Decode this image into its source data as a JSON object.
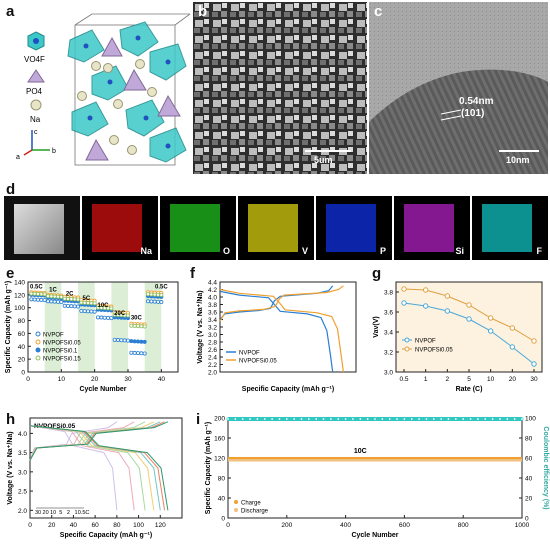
{
  "panels": {
    "a": "a",
    "b": "b",
    "c": "c",
    "d": "d",
    "e": "e",
    "f": "f",
    "g": "g",
    "h": "h",
    "i": "i"
  },
  "panel_a": {
    "legend": [
      "VO4F",
      "PO4",
      "Na"
    ],
    "axes": {
      "a": "a",
      "b": "b",
      "c": "c"
    }
  },
  "panel_b": {
    "scale": "5um"
  },
  "panel_c": {
    "spacing": "0.54nm",
    "plane": "(101)",
    "scale": "10nm"
  },
  "panel_d": {
    "maps": [
      "Na",
      "O",
      "V",
      "P",
      "Si",
      "F"
    ],
    "map_colors": [
      "#d01010",
      "#20c020",
      "#d8d010",
      "#1030e0",
      "#b020c0",
      "#10c0c0"
    ]
  },
  "chart_data": [
    {
      "id": "e",
      "type": "scatter",
      "xlabel": "Cycle Number",
      "ylabel": "Specific Capacity (mAh g⁻¹)",
      "xlim": [
        0,
        45
      ],
      "ylim": [
        0,
        140
      ],
      "xticks": [
        0,
        10,
        20,
        30,
        40
      ],
      "yticks": [
        0,
        20,
        40,
        60,
        80,
        100,
        120,
        140
      ],
      "rate_labels": [
        {
          "text": "0.5C",
          "x": 2.5,
          "y": 130
        },
        {
          "text": "1C",
          "x": 7.5,
          "y": 125
        },
        {
          "text": "2C",
          "x": 12.5,
          "y": 119
        },
        {
          "text": "5C",
          "x": 17.5,
          "y": 112
        },
        {
          "text": "10C",
          "x": 22.5,
          "y": 101
        },
        {
          "text": "20C",
          "x": 27.5,
          "y": 89
        },
        {
          "text": "30C",
          "x": 32.5,
          "y": 82
        },
        {
          "text": "0.5C",
          "x": 40,
          "y": 130
        }
      ],
      "series": [
        {
          "name": "NVPOF",
          "color": "#2a7fd4",
          "filled": false,
          "levels": [
            113,
            110,
            103,
            95,
            85,
            50,
            30,
            110
          ]
        },
        {
          "name": "NVPOFSi0.05",
          "color": "#f0a030",
          "filled": false,
          "levels": [
            124,
            120,
            117,
            112,
            103,
            93,
            75,
            124
          ]
        },
        {
          "name": "NVPOFSi0.1",
          "color": "#2a7fd4",
          "filled": true,
          "levels": [
            120,
            116,
            111,
            105,
            97,
            85,
            48,
            118
          ]
        },
        {
          "name": "NVPOFSi0.15",
          "color": "#90c060",
          "filled": false,
          "levels": [
            122,
            118,
            114,
            108,
            100,
            89,
            72,
            121
          ]
        }
      ],
      "legend": [
        "NVPOF",
        "NVPOFSi0.05",
        "NVPOFSi0.1",
        "NVPOFSi0.15"
      ]
    },
    {
      "id": "f",
      "type": "line",
      "xlabel": "Specific Capacity (mAh g⁻¹)",
      "ylabel": "Voltage (V vs. Na⁺/Na)",
      "xlim": [
        0,
        140
      ],
      "ylim": [
        2.0,
        4.4
      ],
      "yticks": [
        2.0,
        2.2,
        2.4,
        2.6,
        2.8,
        3.0,
        3.2,
        3.4,
        3.6,
        3.8,
        4.0,
        4.2,
        4.4
      ],
      "series": [
        {
          "name": "NVPOF",
          "color": "#2a7fd4",
          "charge": [
            [
              0,
              3.4
            ],
            [
              5,
              3.55
            ],
            [
              20,
              3.6
            ],
            [
              40,
              3.64
            ],
            [
              52,
              3.7
            ],
            [
              56,
              3.9
            ],
            [
              62,
              4.02
            ],
            [
              100,
              4.1
            ],
            [
              112,
              4.17
            ],
            [
              116,
              4.3
            ]
          ],
          "discharge": [
            [
              0,
              4.15
            ],
            [
              20,
              4.05
            ],
            [
              50,
              3.98
            ],
            [
              56,
              3.8
            ],
            [
              62,
              3.62
            ],
            [
              90,
              3.55
            ],
            [
              104,
              3.45
            ],
            [
              110,
              3.1
            ],
            [
              114,
              2.4
            ],
            [
              116,
              2.0
            ]
          ]
        },
        {
          "name": "NVPOFSi0.05",
          "color": "#f0a030",
          "charge": [
            [
              0,
              3.35
            ],
            [
              5,
              3.58
            ],
            [
              20,
              3.63
            ],
            [
              45,
              3.67
            ],
            [
              57,
              3.75
            ],
            [
              61,
              3.95
            ],
            [
              66,
              4.05
            ],
            [
              110,
              4.12
            ],
            [
              122,
              4.2
            ],
            [
              127,
              4.3
            ]
          ],
          "discharge": [
            [
              0,
              4.2
            ],
            [
              20,
              4.1
            ],
            [
              55,
              4.02
            ],
            [
              61,
              3.85
            ],
            [
              67,
              3.66
            ],
            [
              100,
              3.58
            ],
            [
              115,
              3.48
            ],
            [
              121,
              3.15
            ],
            [
              125,
              2.4
            ],
            [
              127,
              2.0
            ]
          ]
        }
      ],
      "legend": [
        "NVPOF",
        "NVPOFSi0.05"
      ]
    },
    {
      "id": "g",
      "type": "line",
      "xlabel": "Rate (C)",
      "ylabel": "Vav(V)",
      "ylim": [
        3.0,
        3.9
      ],
      "yticks": [
        3.0,
        3.2,
        3.4,
        3.6,
        3.8
      ],
      "x": [
        "0.5",
        "1",
        "2",
        "5",
        "10",
        "20",
        "30"
      ],
      "series": [
        {
          "name": "NVPOF",
          "color": "#4aa8d8",
          "values": [
            3.69,
            3.66,
            3.61,
            3.53,
            3.41,
            3.25,
            3.08
          ]
        },
        {
          "name": "NVPOFSi0.05",
          "color": "#e0a040",
          "values": [
            3.83,
            3.82,
            3.76,
            3.67,
            3.54,
            3.44,
            3.31
          ]
        }
      ],
      "legend": [
        "NVPOF",
        "NVPOFSi0.05"
      ]
    },
    {
      "id": "h",
      "type": "line",
      "title": "NVPOFSi0.05",
      "xlabel": "Specific Capacity (mAh g⁻¹)",
      "ylabel": "Voltage (V vs. Na⁺/Na)",
      "xlim": [
        0,
        140
      ],
      "ylim": [
        1.8,
        4.4
      ],
      "xticks": [
        0,
        20,
        40,
        60,
        80,
        100,
        120
      ],
      "yticks": [
        2.0,
        2.5,
        3.0,
        3.5,
        4.0
      ],
      "rate_labels": [
        "30",
        "20",
        "10",
        "5",
        "2",
        "1",
        "0.5C"
      ],
      "series": [
        {
          "name": "30",
          "color": "#d0c0e8",
          "capacity": 80
        },
        {
          "name": "20",
          "color": "#f0a8b8",
          "capacity": 96
        },
        {
          "name": "10",
          "color": "#a8d8a0",
          "capacity": 106
        },
        {
          "name": "5",
          "color": "#f0d070",
          "capacity": 114
        },
        {
          "name": "2",
          "color": "#70c8c8",
          "capacity": 120
        },
        {
          "name": "1",
          "color": "#f08060",
          "capacity": 124
        },
        {
          "name": "0.5",
          "color": "#2a9a70",
          "capacity": 127
        }
      ]
    },
    {
      "id": "i",
      "type": "scatter",
      "xlabel": "Cycle Number",
      "ylabel": "Specific Capacity (mAh g⁻¹)",
      "y2label": "Coulombic efficiency (%)",
      "xlim": [
        0,
        1000
      ],
      "ylim": [
        0,
        200
      ],
      "y2lim": [
        0,
        100
      ],
      "xticks": [
        0,
        200,
        400,
        600,
        800,
        1000
      ],
      "yticks": [
        0,
        40,
        80,
        120,
        160,
        200
      ],
      "y2ticks": [
        0,
        20,
        40,
        60,
        80,
        100
      ],
      "annotation": "10C",
      "series": [
        {
          "name": "Charge",
          "color": "#f0a030",
          "value": 120
        },
        {
          "name": "Discharge",
          "color": "#f0c080",
          "value": 118
        },
        {
          "name": "Coulombic efficiency",
          "color": "#30c8c0",
          "value": 99
        }
      ],
      "legend": [
        "Charge",
        "Discharge"
      ]
    }
  ]
}
